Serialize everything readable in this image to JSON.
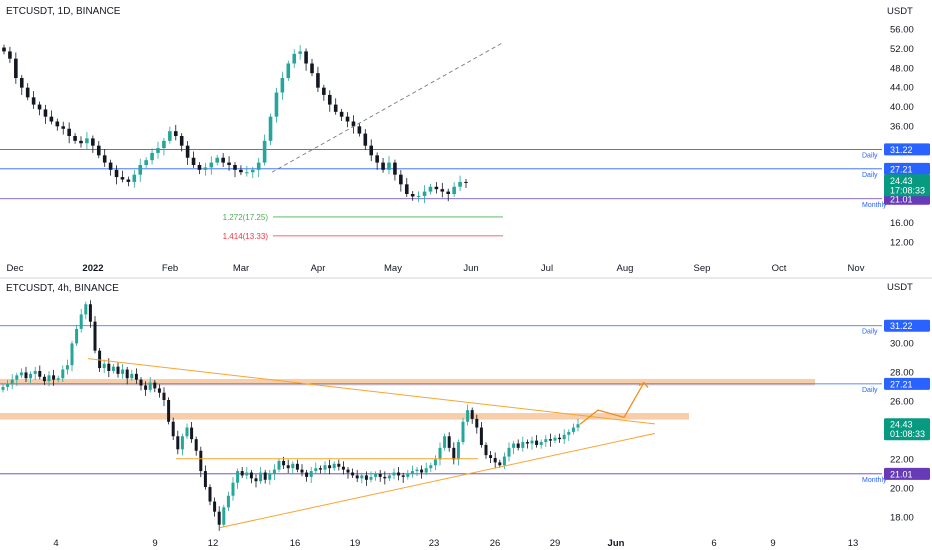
{
  "chart_data": [
    {
      "type": "candlestick",
      "title": "ETCUSDT, 1D, BINANCE",
      "currency": "USDT",
      "y_ticks": [
        "56.00",
        "52.00",
        "48.00",
        "44.00",
        "40.00",
        "36.00",
        "16.00",
        "12.00"
      ],
      "ylim": [
        10,
        58
      ],
      "x_ticks": [
        "Dec",
        "2022",
        "Feb",
        "Mar",
        "Apr",
        "May",
        "Jun",
        "Jul",
        "Aug",
        "Sep",
        "Oct",
        "Nov"
      ],
      "levels": [
        {
          "value": 31.22,
          "label": "31.22",
          "note": "Daily",
          "color": "#2962ff"
        },
        {
          "value": 27.21,
          "label": "27.21",
          "note": "Daily",
          "color": "#2962ff"
        },
        {
          "value": 21.01,
          "label": "21.01",
          "note": "Monthly",
          "color": "#673ab7"
        }
      ],
      "price_badge": {
        "value": 24.43,
        "price": "24.43",
        "countdown": "17:08:33",
        "color": "#089981"
      },
      "fib_levels": [
        {
          "label": "1.272(17.25)",
          "value": 17.25,
          "color": "#4caf50"
        },
        {
          "label": "1.414(13.33)",
          "value": 13.33,
          "color": "#f23645"
        }
      ],
      "series": [
        {
          "name": "",
          "close": [
            51.5,
            50,
            46,
            44,
            42,
            40.5,
            39.5,
            38,
            37,
            36,
            35.5,
            34,
            33,
            32.5,
            33.5,
            32,
            30,
            28.5,
            27,
            25.5,
            25,
            24.5,
            26,
            28,
            29,
            30.5,
            31.5,
            33,
            35,
            34,
            32,
            29.5,
            28,
            27,
            27.5,
            28.5,
            29.5,
            28.5,
            28,
            27,
            26.5,
            26.5,
            27,
            28.5,
            33,
            38,
            43,
            46,
            49,
            51,
            51.5,
            49,
            47,
            44,
            42.5,
            40.5,
            39,
            38,
            37,
            36,
            34.5,
            32,
            30,
            28.5,
            27,
            28.5,
            26,
            24,
            22,
            21.5,
            21.6,
            22.5,
            23.5,
            23,
            22.5,
            22,
            23.5,
            24.5,
            24.43
          ]
        }
      ]
    },
    {
      "type": "candlestick",
      "title": "ETCUSDT, 4h, BINANCE",
      "currency": "USDT",
      "y_ticks": [
        "30.00",
        "28.00",
        "26.00",
        "22.00",
        "20.00",
        "18.00"
      ],
      "ylim": [
        17,
        33.2
      ],
      "x_ticks": [
        "4",
        "9",
        "12",
        "16",
        "19",
        "23",
        "26",
        "29",
        "Jun",
        "6",
        "9",
        "13"
      ],
      "levels": [
        {
          "value": 31.22,
          "label": "31.22",
          "note": "Daily",
          "color": "#2962ff"
        },
        {
          "value": 27.21,
          "label": "27.21",
          "note": "Daily",
          "color": "#2962ff"
        },
        {
          "value": 21.01,
          "label": "21.01",
          "note": "Monthly",
          "color": "#673ab7"
        }
      ],
      "zones": [
        {
          "from": 27.1,
          "to": 27.55
        },
        {
          "from": 24.75,
          "to": 25.2
        }
      ],
      "price_badge": {
        "value": 24.43,
        "price": "24.43",
        "countdown": "01:08:33",
        "color": "#089981"
      },
      "series": [
        {
          "name": "",
          "close": [
            27,
            27.2,
            27.5,
            27.8,
            28,
            27.6,
            27.9,
            28.1,
            27.7,
            27.4,
            27.8,
            27.5,
            27.6,
            28.2,
            28.5,
            30,
            31,
            32,
            32.7,
            31.5,
            29.5,
            28.3,
            28.6,
            28.1,
            28.4,
            27.9,
            28.2,
            27.6,
            27.9,
            27.5,
            27.1,
            26.8,
            27.3,
            26.9,
            26.6,
            26.1,
            24.6,
            23.6,
            22.7,
            23.6,
            24.2,
            23.4,
            22.6,
            21.2,
            20.1,
            19.1,
            18.4,
            17.5,
            18.7,
            19.5,
            20.4,
            21.2,
            20.9,
            21.1,
            20.7,
            20.5,
            21.1,
            20.6,
            21,
            21.3,
            21.9,
            21.6,
            21.4,
            21.7,
            21.3,
            21.1,
            20.8,
            21.2,
            21.4,
            21.3,
            21.6,
            21.4,
            21.7,
            21.5,
            21.3,
            21.1,
            20.9,
            20.7,
            20.9,
            20.6,
            20.8,
            21,
            20.8,
            20.7,
            20.9,
            21.1,
            20.9,
            20.8,
            21,
            21.2,
            21.3,
            21.1,
            21.4,
            21.6,
            22,
            22.8,
            23.6,
            22.8,
            22,
            23.2,
            24.6,
            25.4,
            24.8,
            24.2,
            23,
            22.3,
            22.1,
            21.8,
            21.6,
            22.2,
            22.8,
            23.1,
            22.8,
            23.2,
            23.1,
            23.3,
            23,
            23.2,
            23.4,
            23.3,
            23.5,
            23.4,
            23.7,
            23.9,
            24.2,
            24.43
          ]
        }
      ]
    }
  ]
}
